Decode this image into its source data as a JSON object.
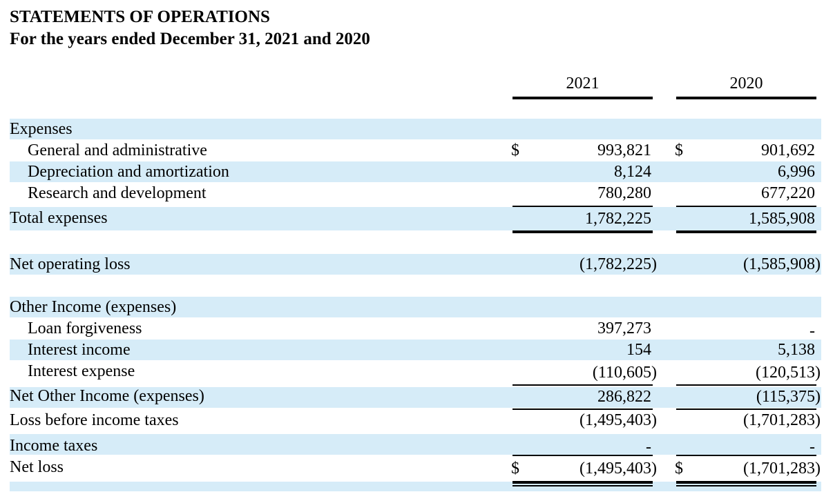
{
  "header": {
    "title": "STATEMENTS OF OPERATIONS",
    "subtitle": "For the years ended December 31, 2021 and 2020"
  },
  "columns": [
    "2021",
    "2020"
  ],
  "currency_symbol": "$",
  "rows": {
    "expenses_heading": {
      "label": "Expenses"
    },
    "general_admin": {
      "label": "General and administrative",
      "v2021": "993,821",
      "v2020": "901,692"
    },
    "depreciation": {
      "label": "Depreciation and amortization",
      "v2021": "8,124",
      "v2020": "6,996"
    },
    "research": {
      "label": "Research and development",
      "v2021": "780,280",
      "v2020": "677,220"
    },
    "total_expenses": {
      "label": "Total expenses",
      "v2021": "1,782,225",
      "v2020": "1,585,908"
    },
    "net_operating_loss": {
      "label": "Net operating loss",
      "v2021": "(1,782,225)",
      "v2020": "(1,585,908)"
    },
    "other_heading": {
      "label": "Other Income (expenses)"
    },
    "loan_forgiveness": {
      "label": "Loan forgiveness",
      "v2021": "397,273",
      "v2020": "-"
    },
    "interest_income": {
      "label": "Interest income",
      "v2021": "154",
      "v2020": "5,138"
    },
    "interest_expense": {
      "label": "Interest expense",
      "v2021": "(110,605)",
      "v2020": "(120,513)"
    },
    "net_other": {
      "label": "Net Other Income (expenses)",
      "v2021": "286,822",
      "v2020": "(115,375)"
    },
    "loss_before_tax": {
      "label": "Loss before income taxes",
      "v2021": "(1,495,403)",
      "v2020": "(1,701,283)"
    },
    "income_taxes": {
      "label": "Income taxes",
      "v2021": "-",
      "v2020": "-"
    },
    "net_loss": {
      "label": "Net loss",
      "v2021": "(1,495,403)",
      "v2020": "(1,701,283)"
    }
  },
  "colors": {
    "band": "#d6ecf8",
    "text": "#000000"
  }
}
